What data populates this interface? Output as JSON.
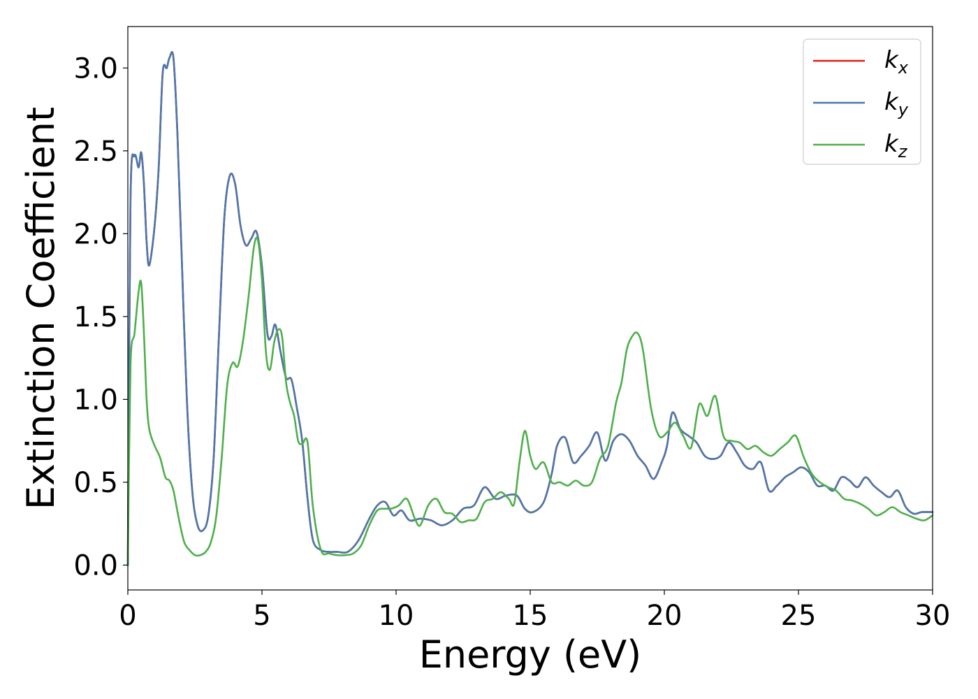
{
  "chart_data": {
    "type": "line",
    "xlabel": "Energy (eV)",
    "ylabel": "Extinction Coefficient",
    "xlim": [
      0,
      30
    ],
    "ylim": [
      -0.15,
      3.25
    ],
    "xticks": [
      0,
      5,
      10,
      15,
      20,
      25,
      30
    ],
    "xtick_labels": [
      "0",
      "5",
      "10",
      "15",
      "20",
      "25",
      "30"
    ],
    "yticks": [
      0.0,
      0.5,
      1.0,
      1.5,
      2.0,
      2.5,
      3.0
    ],
    "ytick_labels": [
      "0.0",
      "0.5",
      "1.0",
      "1.5",
      "2.0",
      "2.5",
      "3.0"
    ],
    "grid": false,
    "legend_position": "top-right",
    "series": [
      {
        "name": "k_x",
        "label_main": "k",
        "label_sub": "x",
        "color": "#e41a1c",
        "x": [
          0,
          0.1,
          0.25,
          0.4,
          0.5,
          0.6,
          0.7,
          0.8,
          1.0,
          1.15,
          1.3,
          1.45,
          1.55,
          1.7,
          1.85,
          2.0,
          2.2,
          2.4,
          2.6,
          2.8,
          3.0,
          3.2,
          3.4,
          3.6,
          3.8,
          4.0,
          4.2,
          4.4,
          4.6,
          4.8,
          5.0,
          5.2,
          5.35,
          5.5,
          5.7,
          5.9,
          6.1,
          6.3,
          6.5,
          6.7,
          6.9,
          7.2,
          7.5,
          7.8,
          8.2,
          8.6,
          9.0,
          9.3,
          9.6,
          9.9,
          10.2,
          10.5,
          10.9,
          11.3,
          11.7,
          12.1,
          12.5,
          12.9,
          13.3,
          13.7,
          14.1,
          14.5,
          14.8,
          15.1,
          15.5,
          15.8,
          16.0,
          16.3,
          16.6,
          16.9,
          17.2,
          17.5,
          17.8,
          18.1,
          18.4,
          18.7,
          19.0,
          19.3,
          19.6,
          19.9,
          20.1,
          20.3,
          20.6,
          20.9,
          21.2,
          21.5,
          21.8,
          22.1,
          22.4,
          22.7,
          23.0,
          23.3,
          23.6,
          23.9,
          24.2,
          24.5,
          24.8,
          25.1,
          25.4,
          25.7,
          26.0,
          26.3,
          26.6,
          26.9,
          27.2,
          27.5,
          27.8,
          28.1,
          28.4,
          28.7,
          29.0,
          29.3,
          29.6,
          30.0
        ],
        "y": [
          0.0,
          2.2,
          2.47,
          2.4,
          2.49,
          2.3,
          1.95,
          1.81,
          2.05,
          2.4,
          2.97,
          3.0,
          3.06,
          3.06,
          2.6,
          1.9,
          1.0,
          0.45,
          0.24,
          0.21,
          0.3,
          0.65,
          1.4,
          2.1,
          2.35,
          2.3,
          2.05,
          1.93,
          1.97,
          2.01,
          1.8,
          1.4,
          1.38,
          1.45,
          1.28,
          1.13,
          1.12,
          0.95,
          0.75,
          0.4,
          0.15,
          0.09,
          0.08,
          0.08,
          0.08,
          0.15,
          0.28,
          0.36,
          0.38,
          0.3,
          0.33,
          0.27,
          0.28,
          0.27,
          0.24,
          0.27,
          0.34,
          0.36,
          0.47,
          0.4,
          0.42,
          0.42,
          0.34,
          0.32,
          0.38,
          0.55,
          0.72,
          0.77,
          0.62,
          0.66,
          0.72,
          0.8,
          0.63,
          0.75,
          0.79,
          0.75,
          0.66,
          0.6,
          0.52,
          0.62,
          0.72,
          0.92,
          0.82,
          0.78,
          0.74,
          0.66,
          0.64,
          0.66,
          0.74,
          0.68,
          0.6,
          0.58,
          0.62,
          0.45,
          0.48,
          0.53,
          0.56,
          0.59,
          0.56,
          0.48,
          0.48,
          0.45,
          0.53,
          0.51,
          0.47,
          0.53,
          0.48,
          0.44,
          0.41,
          0.45,
          0.35,
          0.31,
          0.32,
          0.32
        ]
      },
      {
        "name": "k_y",
        "label_main": "k",
        "label_sub": "y",
        "color": "#4a78ac",
        "x": [
          0,
          0.1,
          0.25,
          0.4,
          0.5,
          0.6,
          0.7,
          0.8,
          1.0,
          1.15,
          1.3,
          1.45,
          1.55,
          1.7,
          1.85,
          2.0,
          2.2,
          2.4,
          2.6,
          2.8,
          3.0,
          3.2,
          3.4,
          3.6,
          3.8,
          4.0,
          4.2,
          4.4,
          4.6,
          4.8,
          5.0,
          5.2,
          5.35,
          5.5,
          5.7,
          5.9,
          6.1,
          6.3,
          6.5,
          6.7,
          6.9,
          7.2,
          7.5,
          7.8,
          8.2,
          8.6,
          9.0,
          9.3,
          9.6,
          9.9,
          10.2,
          10.5,
          10.9,
          11.3,
          11.7,
          12.1,
          12.5,
          12.9,
          13.3,
          13.7,
          14.1,
          14.5,
          14.8,
          15.1,
          15.5,
          15.8,
          16.0,
          16.3,
          16.6,
          16.9,
          17.2,
          17.5,
          17.8,
          18.1,
          18.4,
          18.7,
          19.0,
          19.3,
          19.6,
          19.9,
          20.1,
          20.3,
          20.6,
          20.9,
          21.2,
          21.5,
          21.8,
          22.1,
          22.4,
          22.7,
          23.0,
          23.3,
          23.6,
          23.9,
          24.2,
          24.5,
          24.8,
          25.1,
          25.4,
          25.7,
          26.0,
          26.3,
          26.6,
          26.9,
          27.2,
          27.5,
          27.8,
          28.1,
          28.4,
          28.7,
          29.0,
          29.3,
          29.6,
          30.0
        ],
        "y": [
          0.0,
          2.2,
          2.47,
          2.4,
          2.49,
          2.3,
          1.95,
          1.81,
          2.05,
          2.4,
          2.97,
          3.0,
          3.06,
          3.06,
          2.6,
          1.9,
          1.0,
          0.45,
          0.24,
          0.21,
          0.3,
          0.65,
          1.4,
          2.1,
          2.35,
          2.3,
          2.05,
          1.93,
          1.97,
          2.01,
          1.8,
          1.4,
          1.38,
          1.45,
          1.28,
          1.13,
          1.12,
          0.95,
          0.75,
          0.4,
          0.15,
          0.09,
          0.08,
          0.08,
          0.08,
          0.15,
          0.28,
          0.36,
          0.38,
          0.3,
          0.33,
          0.27,
          0.28,
          0.27,
          0.24,
          0.27,
          0.34,
          0.36,
          0.47,
          0.4,
          0.42,
          0.42,
          0.34,
          0.32,
          0.38,
          0.55,
          0.72,
          0.77,
          0.62,
          0.66,
          0.72,
          0.8,
          0.63,
          0.75,
          0.79,
          0.75,
          0.66,
          0.6,
          0.52,
          0.62,
          0.72,
          0.92,
          0.82,
          0.78,
          0.74,
          0.66,
          0.64,
          0.66,
          0.74,
          0.68,
          0.6,
          0.58,
          0.62,
          0.45,
          0.48,
          0.53,
          0.56,
          0.59,
          0.56,
          0.48,
          0.48,
          0.45,
          0.53,
          0.51,
          0.47,
          0.53,
          0.48,
          0.44,
          0.41,
          0.45,
          0.35,
          0.31,
          0.32,
          0.32
        ]
      },
      {
        "name": "k_z",
        "label_main": "k",
        "label_sub": "z",
        "color": "#4daf4a",
        "x": [
          0,
          0.1,
          0.25,
          0.4,
          0.5,
          0.6,
          0.7,
          0.8,
          1.0,
          1.2,
          1.4,
          1.55,
          1.7,
          1.9,
          2.1,
          2.3,
          2.5,
          2.7,
          2.9,
          3.1,
          3.3,
          3.5,
          3.7,
          3.9,
          4.1,
          4.3,
          4.5,
          4.7,
          4.85,
          5.0,
          5.15,
          5.3,
          5.45,
          5.6,
          5.75,
          5.9,
          6.05,
          6.2,
          6.35,
          6.5,
          6.7,
          6.9,
          7.2,
          7.5,
          7.8,
          8.1,
          8.4,
          8.7,
          9.0,
          9.3,
          9.6,
          9.8,
          10.1,
          10.4,
          10.7,
          10.9,
          11.2,
          11.5,
          11.8,
          12.1,
          12.4,
          12.7,
          13.0,
          13.3,
          13.6,
          13.9,
          14.2,
          14.4,
          14.6,
          14.8,
          15.0,
          15.2,
          15.5,
          15.8,
          16.1,
          16.4,
          16.7,
          17.0,
          17.3,
          17.6,
          17.9,
          18.2,
          18.4,
          18.6,
          18.8,
          19.0,
          19.2,
          19.5,
          19.8,
          20.1,
          20.4,
          20.7,
          21.0,
          21.3,
          21.6,
          21.9,
          22.2,
          22.5,
          22.8,
          23.1,
          23.4,
          23.7,
          24.0,
          24.3,
          24.6,
          24.9,
          25.2,
          25.5,
          25.8,
          26.1,
          26.4,
          26.7,
          27.0,
          27.3,
          27.6,
          27.9,
          28.2,
          28.5,
          28.8,
          29.1,
          29.4,
          29.7,
          30.0
        ],
        "y": [
          0.0,
          1.2,
          1.4,
          1.65,
          1.7,
          1.4,
          1.0,
          0.82,
          0.72,
          0.65,
          0.53,
          0.51,
          0.45,
          0.28,
          0.14,
          0.09,
          0.06,
          0.06,
          0.08,
          0.14,
          0.3,
          0.65,
          1.08,
          1.22,
          1.2,
          1.36,
          1.62,
          1.92,
          1.96,
          1.72,
          1.28,
          1.18,
          1.34,
          1.42,
          1.38,
          1.1,
          0.98,
          0.9,
          0.75,
          0.73,
          0.74,
          0.35,
          0.09,
          0.07,
          0.06,
          0.06,
          0.07,
          0.12,
          0.24,
          0.33,
          0.34,
          0.34,
          0.36,
          0.4,
          0.28,
          0.24,
          0.36,
          0.4,
          0.32,
          0.31,
          0.26,
          0.27,
          0.28,
          0.38,
          0.4,
          0.44,
          0.4,
          0.37,
          0.62,
          0.81,
          0.66,
          0.58,
          0.62,
          0.5,
          0.5,
          0.48,
          0.51,
          0.48,
          0.5,
          0.64,
          0.72,
          0.98,
          1.1,
          1.3,
          1.38,
          1.4,
          1.3,
          0.95,
          0.78,
          0.8,
          0.86,
          0.78,
          0.71,
          0.97,
          0.9,
          1.02,
          0.78,
          0.75,
          0.74,
          0.7,
          0.72,
          0.68,
          0.66,
          0.7,
          0.74,
          0.78,
          0.65,
          0.55,
          0.5,
          0.47,
          0.45,
          0.4,
          0.39,
          0.37,
          0.34,
          0.3,
          0.32,
          0.35,
          0.32,
          0.3,
          0.28,
          0.27,
          0.3
        ]
      }
    ]
  }
}
